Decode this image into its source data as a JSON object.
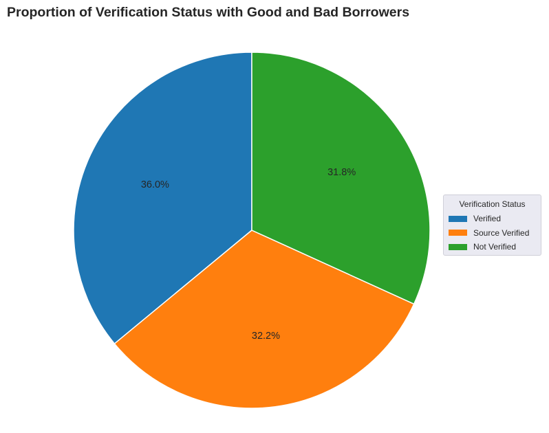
{
  "chart_data": {
    "type": "pie",
    "title": "Proportion of Verification Status with Good and Bad Borrowers",
    "slices": [
      {
        "label": "Verified",
        "value": 36.0,
        "display": "36.0%",
        "color": "#1f77b4"
      },
      {
        "label": "Source Verified",
        "value": 32.2,
        "display": "32.2%",
        "color": "#ff7f0e"
      },
      {
        "label": "Not Verified",
        "value": 31.8,
        "display": "31.8%",
        "color": "#2ca02c"
      }
    ],
    "start_angle": "top (12 o'clock), counterclockwise",
    "legend": {
      "title": "Verification Status",
      "placement": "right"
    }
  }
}
